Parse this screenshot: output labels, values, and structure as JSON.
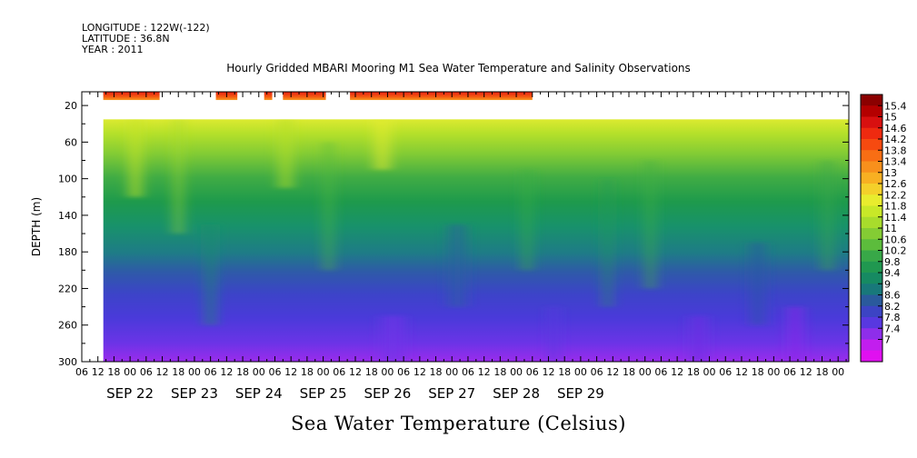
{
  "header": {
    "longitude": "LONGITUDE : 122W(-122)",
    "latitude": "LATITUDE : 36.8N",
    "year": "YEAR : 2011"
  },
  "chart_data": {
    "type": "heatmap",
    "title": "Hourly Gridded MBARI Mooring M1 Sea Water Temperature and Salinity Observations",
    "xlabel": "",
    "ylabel": "DEPTH (m)",
    "caption": "Sea Water Temperature (Celsius)",
    "x_hour_ticks": [
      "06",
      "12",
      "18",
      "00",
      "06",
      "12",
      "18",
      "00",
      "06",
      "12",
      "18",
      "00",
      "06",
      "12",
      "18",
      "00",
      "06",
      "12",
      "18",
      "00",
      "06",
      "12",
      "18",
      "00",
      "06",
      "12",
      "18",
      "00",
      "06",
      "12",
      "18",
      "00",
      "06",
      "12",
      "18",
      "00",
      "06",
      "12",
      "18",
      "00",
      "06",
      "12",
      "18",
      "00",
      "06",
      "12",
      "18",
      "00"
    ],
    "x_date_labels": [
      "SEP 22",
      "SEP 23",
      "SEP 24",
      "SEP 25",
      "SEP 26",
      "SEP 27",
      "SEP 28",
      "SEP 29"
    ],
    "x_range_hours_since_first_tick": [
      0,
      286
    ],
    "y_ticks": [
      20,
      60,
      100,
      140,
      180,
      220,
      260,
      300
    ],
    "y_range": [
      5,
      300
    ],
    "y_inverted": true,
    "colorbar": {
      "labels": [
        "15.4",
        "15",
        "14.6",
        "14.2",
        "13.8",
        "13.4",
        "13",
        "12.6",
        "12.2",
        "11.8",
        "11.4",
        "11",
        "10.6",
        "10.2",
        "9.8",
        "9.4",
        "9",
        "8.6",
        "8.2",
        "7.8",
        "7.4",
        "7"
      ],
      "colors": [
        "#8b0000",
        "#b40000",
        "#d81010",
        "#ee2a10",
        "#f64a10",
        "#f86e14",
        "#f8901c",
        "#f8b022",
        "#f4d02a",
        "#e8ec2e",
        "#c8e828",
        "#a8dc2c",
        "#84cc34",
        "#5cbc3c",
        "#38a848",
        "#209850",
        "#168a62",
        "#18787a",
        "#2a5a9c",
        "#3c44c4",
        "#5838e0",
        "#8e2eea",
        "#c21eee",
        "#e010f0"
      ]
    },
    "surface_segments": [
      {
        "start": "SEP 22 14:00",
        "end": "SEP 23 11:00"
      },
      {
        "start": "SEP 24 08:00",
        "end": "SEP 24 16:00"
      },
      {
        "start": "SEP 25 02:00",
        "end": "SEP 25 05:00"
      },
      {
        "start": "SEP 25 09:00",
        "end": "SEP 26 01:00"
      },
      {
        "start": "SEP 26 10:00",
        "end": "SEP 29 06:00"
      }
    ],
    "surface_depth_range_m": [
      5,
      14
    ],
    "surface_temperature_approx": 13.6,
    "main_depth_range_m": [
      35,
      300
    ],
    "main_data_start": "SEP 22 14:00",
    "temperature_profile_approx": [
      {
        "depth": 35,
        "temp": 11.6
      },
      {
        "depth": 60,
        "temp": 11.1
      },
      {
        "depth": 100,
        "temp": 10.2
      },
      {
        "depth": 140,
        "temp": 9.7
      },
      {
        "depth": 180,
        "temp": 9.1
      },
      {
        "depth": 220,
        "temp": 8.5
      },
      {
        "depth": 260,
        "temp": 8.0
      },
      {
        "depth": 300,
        "temp": 7.4
      }
    ]
  }
}
